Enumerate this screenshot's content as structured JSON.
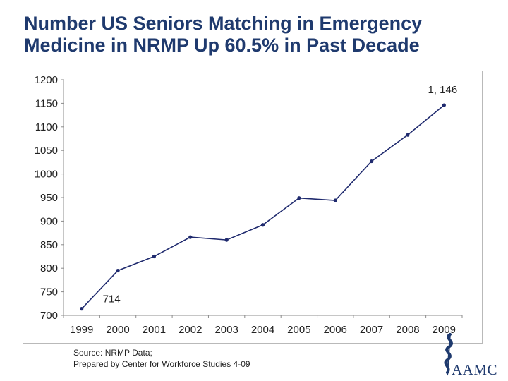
{
  "title": {
    "line1": "Number US Seniors Matching in Emergency",
    "line2": "Medicine in NRMP Up 60.5% in Past Decade"
  },
  "chart_data": {
    "type": "line",
    "title": "Number US Seniors Matching in Emergency Medicine in NRMP Up 60.5% in Past Decade",
    "xlabel": "",
    "ylabel": "",
    "categories": [
      "1999",
      "2000",
      "2001",
      "2002",
      "2003",
      "2004",
      "2005",
      "2006",
      "2007",
      "2008",
      "2009"
    ],
    "series": [
      {
        "name": "US Seniors Matching in Emergency Medicine",
        "values": [
          714,
          795,
          825,
          866,
          860,
          892,
          949,
          944,
          1027,
          1083,
          1146
        ],
        "color": "#1f2a6e"
      }
    ],
    "ylim": [
      700,
      1200
    ],
    "yticks": [
      "700",
      "750",
      "800",
      "850",
      "900",
      "950",
      "1000",
      "1050",
      "1100",
      "1150",
      "1200"
    ],
    "grid": false,
    "annotations": [
      {
        "text": "714",
        "category_index": 0
      },
      {
        "text": "1, 146",
        "category_index": 10
      }
    ]
  },
  "source": {
    "line1": "Source: NRMP Data;",
    "line2": "Prepared by Center for Workforce Studies 4-09"
  },
  "logo": {
    "text": "AAMC",
    "color": "#1f3a6e"
  }
}
